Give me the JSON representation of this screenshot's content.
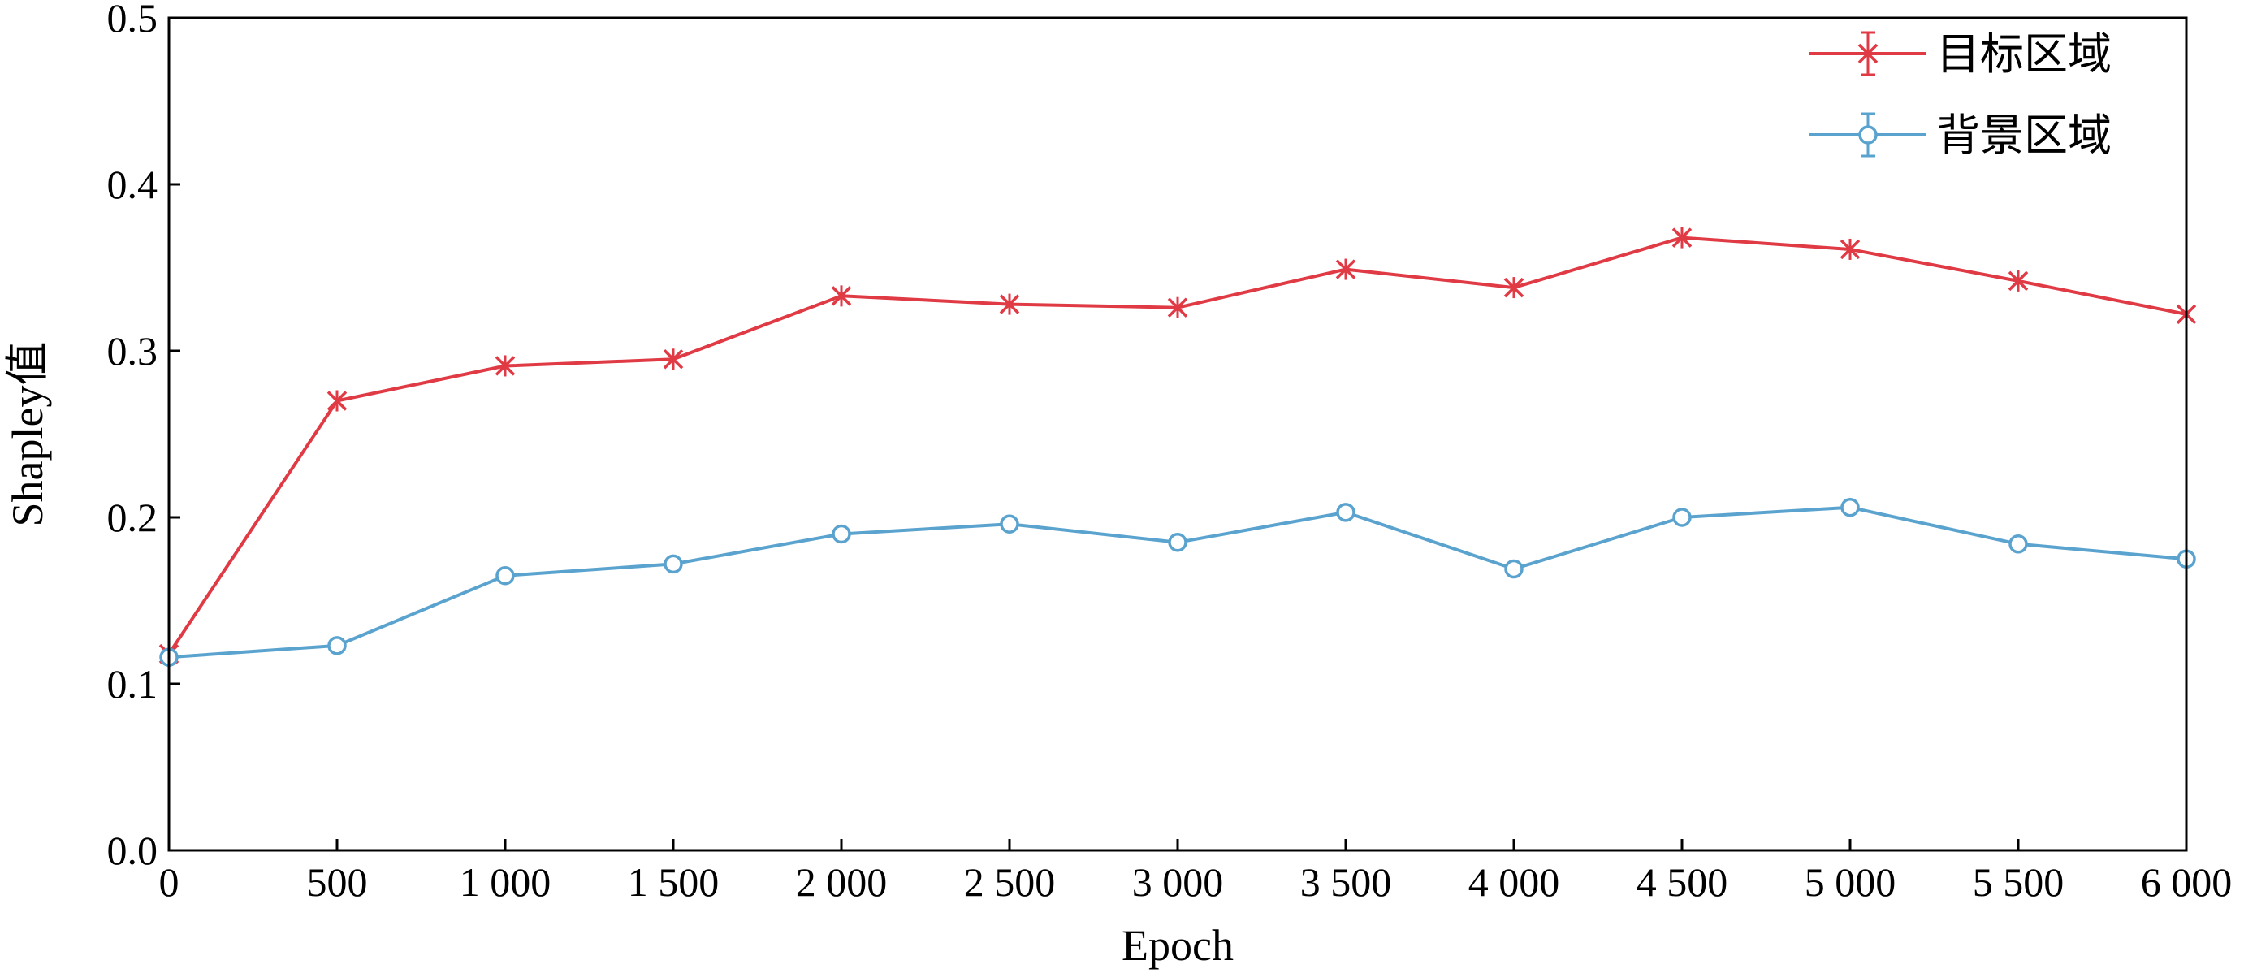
{
  "chart_data": {
    "type": "line",
    "xlabel": "Epoch",
    "ylabel": "Shapley值",
    "xlim": [
      0,
      6000
    ],
    "ylim": [
      0,
      0.5
    ],
    "x_ticks": [
      0,
      500,
      1000,
      1500,
      2000,
      2500,
      3000,
      3500,
      4000,
      4500,
      5000,
      5500,
      6000
    ],
    "x_tick_labels": [
      "0",
      "500",
      "1 000",
      "1 500",
      "2 000",
      "2 500",
      "3 000",
      "3 500",
      "4 000",
      "4 500",
      "5 000",
      "5 500",
      "6 000"
    ],
    "y_ticks": [
      0,
      0.1,
      0.2,
      0.3,
      0.4,
      0.5
    ],
    "y_tick_labels": [
      "0.0",
      "0.1",
      "0.2",
      "0.3",
      "0.4",
      "0.5"
    ],
    "grid": false,
    "legend_position": "top-right",
    "x": [
      0,
      500,
      1000,
      1500,
      2000,
      2500,
      3000,
      3500,
      4000,
      4500,
      5000,
      5500,
      6000
    ],
    "series": [
      {
        "name": "目标区域",
        "color": "#e03a45",
        "marker": "x",
        "values": [
          0.118,
          0.27,
          0.291,
          0.295,
          0.333,
          0.328,
          0.326,
          0.349,
          0.338,
          0.368,
          0.361,
          0.342,
          0.322
        ]
      },
      {
        "name": "背景区域",
        "color": "#5ba3cf",
        "marker": "o",
        "values": [
          0.116,
          0.123,
          0.165,
          0.172,
          0.19,
          0.196,
          0.185,
          0.203,
          0.169,
          0.2,
          0.206,
          0.184,
          0.175
        ]
      }
    ]
  }
}
